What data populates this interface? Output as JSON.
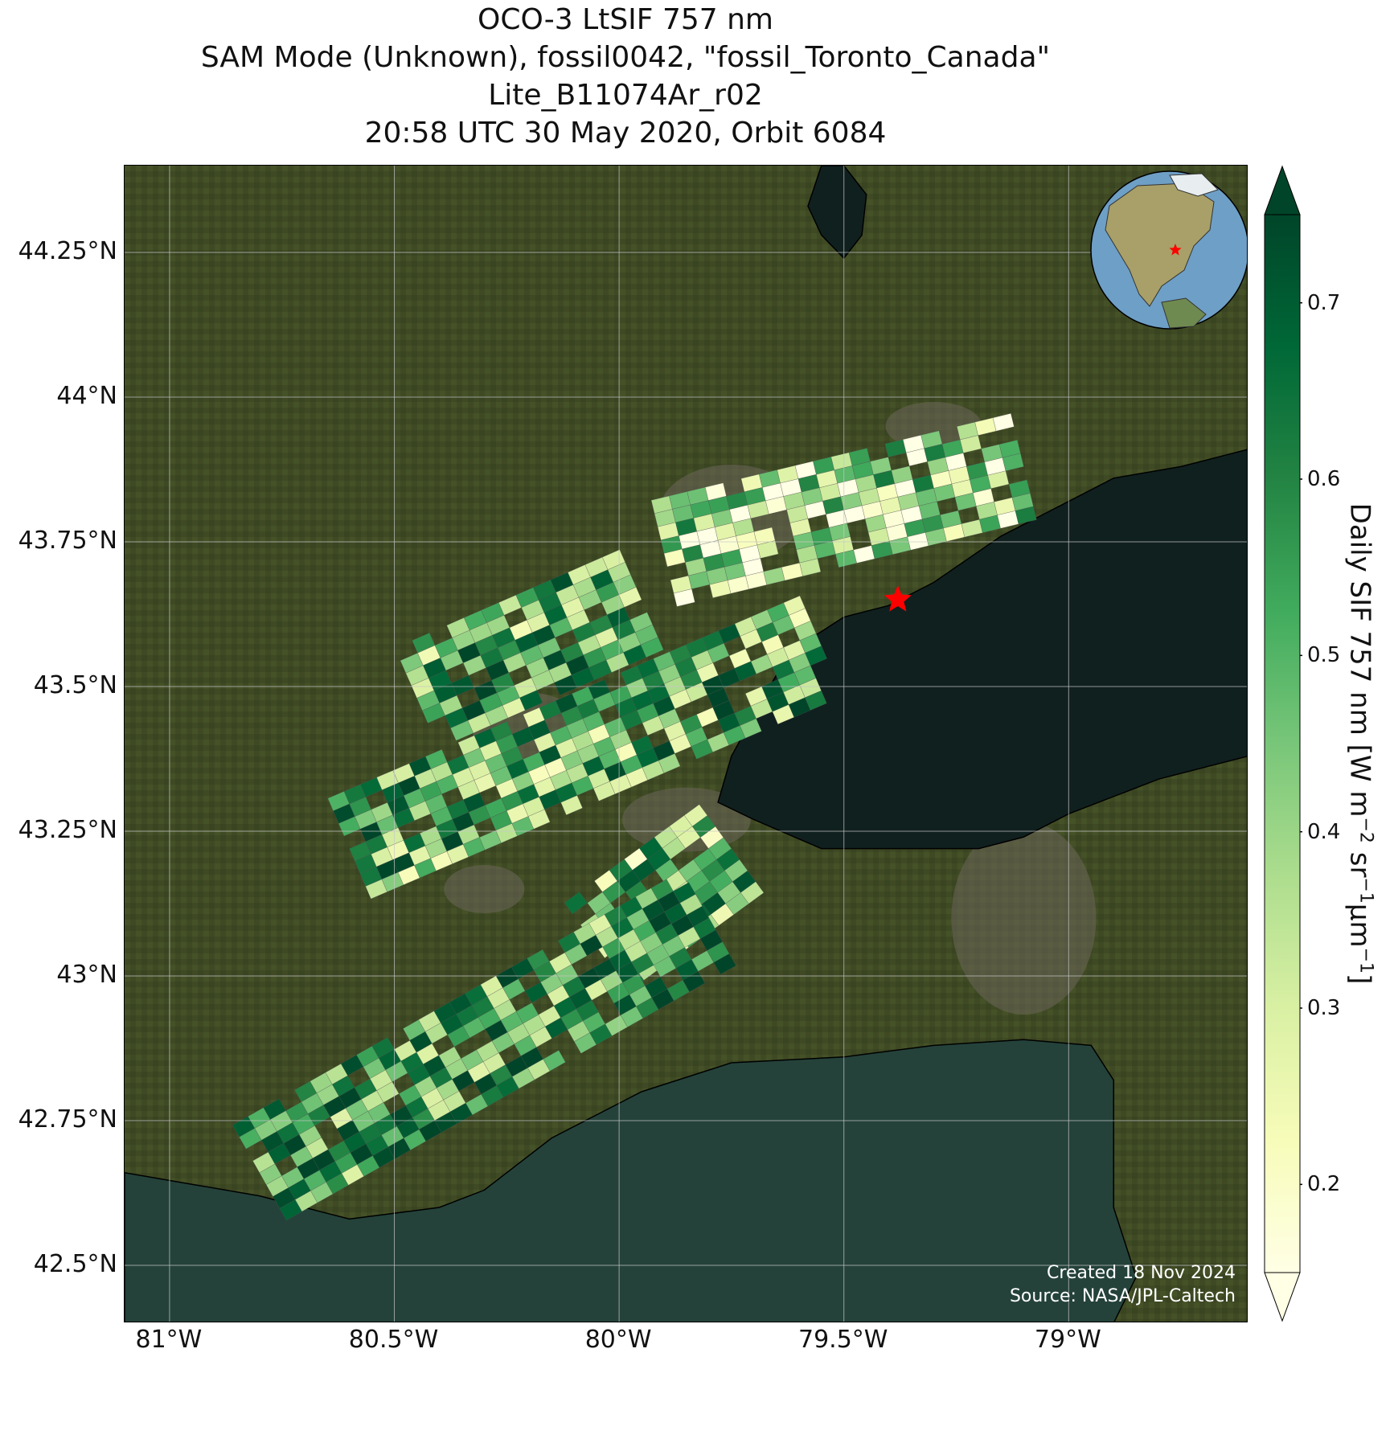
{
  "title": {
    "line1": "OCO-3 LtSIF 757 nm",
    "line2": "SAM Mode (Unknown), fossil0042, \"fossil_Toronto_Canada\"",
    "line3": "Lite_B11074Ar_r02",
    "line4": "20:58 UTC 30 May 2020, Orbit 6084"
  },
  "axes": {
    "lat_ticks": [
      "44.25°N",
      "44°N",
      "43.75°N",
      "43.5°N",
      "43.25°N",
      "43°N",
      "42.75°N",
      "42.5°N"
    ],
    "lon_ticks": [
      "81°W",
      "80.5°W",
      "80°W",
      "79.5°W",
      "79°W"
    ],
    "lat_values": [
      44.25,
      44.0,
      43.75,
      43.5,
      43.25,
      43.0,
      42.75,
      42.5
    ],
    "lon_values": [
      -81.0,
      -80.5,
      -80.0,
      -79.5,
      -79.0
    ],
    "lon_range": [
      -81.1,
      -78.6
    ],
    "lat_range": [
      42.4,
      44.4
    ],
    "grid": true
  },
  "target": {
    "lon": -79.38,
    "lat": 43.65,
    "marker": "red-star"
  },
  "credit": {
    "created": "Created 18 Nov 2024",
    "source": "Source: NASA/JPL-Caltech"
  },
  "colorbar": {
    "label_main": "Daily SIF 757 nm [W m",
    "label_exp1": "−2",
    "label_mid": " sr",
    "label_exp2": "−1",
    "label_mid2": "μm",
    "label_exp3": "−1",
    "label_end": "]",
    "ticks": [
      "0.2",
      "0.3",
      "0.4",
      "0.5",
      "0.6",
      "0.7"
    ],
    "tick_values": [
      0.2,
      0.3,
      0.4,
      0.5,
      0.6,
      0.7
    ],
    "range": [
      0.15,
      0.75
    ],
    "colormap": "YlGn",
    "extend": "both"
  },
  "colors": {
    "land": "#3f4a24",
    "water": "#10201f",
    "shallow_water": "#24423a",
    "urban": "#6b665a",
    "coastline": "#000000",
    "gridline": "#c8c8c8",
    "star": "#ff0000"
  },
  "chart_data": {
    "type": "heatmap",
    "variable": "Daily SIF 757 nm",
    "colormap": "YlGn",
    "vmin": 0.15,
    "vmax": 0.75,
    "swaths": [
      {
        "lon_start": -79.9,
        "lat_start": 43.73,
        "lon_end": -79.1,
        "lat_end": 43.88,
        "mean_value": 0.36
      },
      {
        "lon_start": -80.45,
        "lat_start": 43.48,
        "lon_end": -79.95,
        "lat_end": 43.65,
        "mean_value": 0.5
      },
      {
        "lon_start": -80.6,
        "lat_start": 43.22,
        "lon_end": -79.55,
        "lat_end": 43.57,
        "mean_value": 0.49
      },
      {
        "lon_start": -80.05,
        "lat_start": 43.05,
        "lon_end": -79.75,
        "lat_end": 43.22,
        "mean_value": 0.45
      },
      {
        "lon_start": -80.8,
        "lat_start": 42.66,
        "lon_end": -79.8,
        "lat_end": 43.1,
        "mean_value": 0.55
      }
    ]
  }
}
